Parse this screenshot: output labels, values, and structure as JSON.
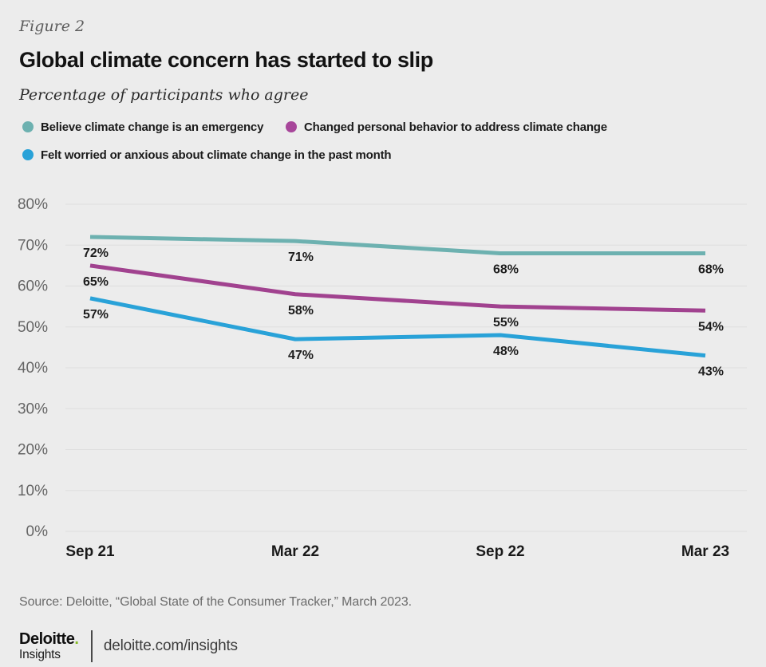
{
  "page": {
    "background": "#ececec"
  },
  "header": {
    "figure_label": "Figure 2",
    "title": "Global climate concern has started to slip",
    "subtitle": "Percentage of participants who agree"
  },
  "legend": {
    "items": [
      {
        "label": "Believe climate change is an emergency",
        "color": "#6db1b0"
      },
      {
        "label": "Changed personal behavior to address climate change",
        "color": "#a7469a"
      },
      {
        "label": "Felt worried or anxious about climate change in the past month",
        "color": "#29a2d8"
      }
    ]
  },
  "chart_data": {
    "type": "line",
    "title": "Global climate concern has started to slip",
    "subtitle": "Percentage of participants who agree",
    "categories": [
      "Sep 21",
      "Mar 22",
      "Sep 22",
      "Mar 23"
    ],
    "series": [
      {
        "name": "Believe climate change is an emergency",
        "color": "#6db1b0",
        "values": [
          72,
          71,
          68,
          68
        ]
      },
      {
        "name": "Changed personal behavior to address climate change",
        "color": "#a1428f",
        "values": [
          65,
          58,
          55,
          54
        ]
      },
      {
        "name": "Felt worried or anxious about climate change in the past month",
        "color": "#29a2d8",
        "values": [
          57,
          47,
          48,
          43
        ]
      }
    ],
    "xlabel": "",
    "ylabel": "",
    "ylim": [
      0,
      80
    ],
    "ytick_step": 10,
    "ytick_labels": [
      "0%",
      "10%",
      "20%",
      "30%",
      "40%",
      "50%",
      "60%",
      "70%",
      "80%"
    ],
    "grid": true,
    "gridline_color": "#dedede",
    "data_labels": true,
    "legend_position": "top"
  },
  "source": "Source: Deloitte, “Global State of the Consumer Tracker,” March 2023.",
  "footer": {
    "brand": "Deloitte",
    "brand_dot": ".",
    "brand_sub": "Insights",
    "url": "deloitte.com/insights",
    "accent_green": "#86bc25"
  }
}
